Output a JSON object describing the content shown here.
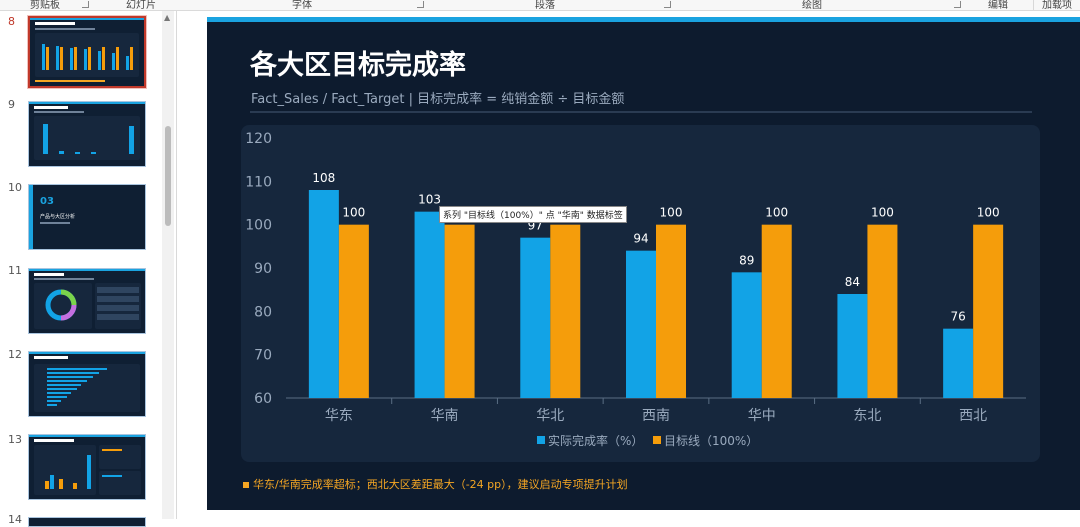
{
  "ribbon": {
    "groups": [
      "剪贴板",
      "幻灯片",
      "字体",
      "段落",
      "绘图",
      "编辑",
      "加载项"
    ]
  },
  "thumbnails": [
    {
      "number": "8",
      "title": "各大区目标完成率",
      "active": true
    },
    {
      "number": "9",
      "title": "",
      "active": false
    },
    {
      "number": "10",
      "title": "产品与大区分析",
      "section": "03",
      "active": false
    },
    {
      "number": "11",
      "title": "",
      "active": false
    },
    {
      "number": "12",
      "title": "",
      "active": false
    },
    {
      "number": "13",
      "title": "",
      "active": false
    },
    {
      "number": "14",
      "title": "",
      "active": false
    }
  ],
  "slide": {
    "title": "各大区目标完成率",
    "subtitle": "Fact_Sales / Fact_Target  |  目标完成率 = 纯销金额 ÷ 目标金额",
    "footnote": "华东/华南完成率超标；西北大区差距最大（-24 pp），建议启动专项提升计划",
    "tooltip": "系列 \"目标线（100%）\" 点 \"华南\" 数据标签"
  },
  "colors": {
    "actual": "#12a3e6",
    "target": "#f59d0b",
    "background": "#0d1b2e",
    "card": "#16273d",
    "accent": "#1aa3e0"
  },
  "chart_data": {
    "type": "bar",
    "categories": [
      "华东",
      "华南",
      "华北",
      "西南",
      "华中",
      "东北",
      "西北"
    ],
    "series": [
      {
        "name": "实际完成率（%）",
        "values": [
          108,
          103,
          97,
          94,
          89,
          84,
          76
        ]
      },
      {
        "name": "目标线（100%）",
        "values": [
          100,
          100,
          100,
          100,
          100,
          100,
          100
        ]
      }
    ],
    "ylim": [
      60,
      120
    ],
    "yticks": [
      60,
      70,
      80,
      90,
      100,
      110,
      120
    ],
    "legend": "bottom",
    "grid": false
  }
}
